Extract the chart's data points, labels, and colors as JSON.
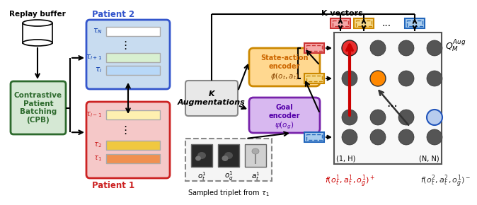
{
  "bg": "#ffffff",
  "replay_label": "Replay buffer",
  "cpb_text": "Contrastive\nPatient\nBatching\n(CPB)",
  "cpb_fc": "#d5e8d4",
  "cpb_ec": "#2d6a2d",
  "p2_label": "Patient 2",
  "p2_fc": "#c8dcf0",
  "p2_ec": "#3355cc",
  "p1_label": "Patient 1",
  "p1_fc": "#f5c8c8",
  "p1_ec": "#cc2222",
  "ka_fc": "#e8e8e8",
  "ka_ec": "#888888",
  "ka_text": "K\nAugmentations",
  "sa_fc": "#ffd890",
  "sa_ec": "#cc8800",
  "ge_fc": "#d8b8f0",
  "ge_ec": "#7722aa",
  "qm_fc": "#f8f8f8",
  "qm_ec": "#555555",
  "k_vec_label": "K vectors",
  "q_label": "$Q_M^{Aug}$",
  "pos_label": "$f(o^1_t, a^1_t, o^1_g)^+$",
  "neg_label": "$f(o^2_t, a^2_t, o^1_g)^-$",
  "n1h_label": "(1, H)",
  "nn_label": "(N, N)",
  "triplet_label": "Sampled triplet from $\\tau_1$",
  "ot_label": "$o^1_t$",
  "og_label": "$o^1_g$",
  "at_label": "$a^1_t$"
}
